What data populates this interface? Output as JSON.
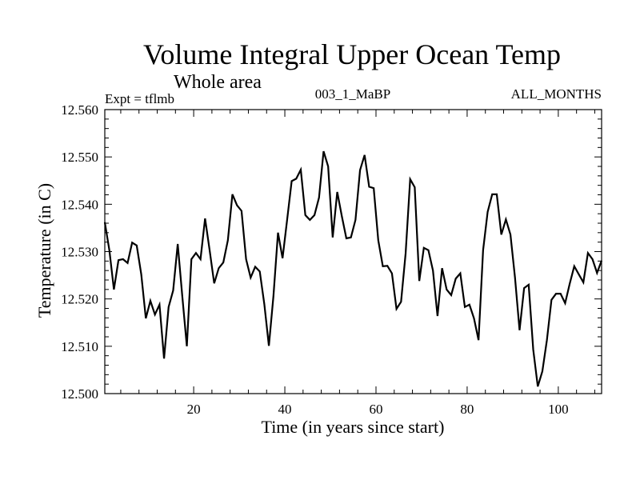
{
  "chart_data": {
    "type": "line",
    "title": "Volume Integral Upper Ocean Temp",
    "subtitle": "Whole area",
    "annotations": {
      "left": "Expt = tflmb",
      "center": "003_1_MaBP",
      "right": "ALL_MONTHS"
    },
    "xlabel": "Time (in years since start)",
    "ylabel": "Temperature (in C)",
    "xlim": [
      0.5,
      109.5
    ],
    "ylim": [
      12.5,
      12.56
    ],
    "xticks": [
      20,
      40,
      60,
      80,
      100
    ],
    "xtick_labels": [
      "20",
      "40",
      "60",
      "80",
      "100"
    ],
    "x_minor_step": 4,
    "yticks": [
      12.5,
      12.51,
      12.52,
      12.53,
      12.54,
      12.55,
      12.56
    ],
    "ytick_labels": [
      "12.500",
      "12.510",
      "12.520",
      "12.530",
      "12.540",
      "12.550",
      "12.560"
    ],
    "y_minor_step": 0.002,
    "grid": false,
    "line_color": "#000000",
    "x_start": 0.5,
    "x_step": 1,
    "series": [
      {
        "name": "Volume Integral Upper Ocean Temp",
        "values": [
          12.5362,
          12.5303,
          12.522,
          12.5282,
          12.5284,
          12.5276,
          12.5319,
          12.5313,
          12.5252,
          12.5159,
          12.5196,
          12.5167,
          12.5188,
          12.5074,
          12.5183,
          12.5218,
          12.5316,
          12.5206,
          12.51,
          12.5284,
          12.5297,
          12.5284,
          12.537,
          12.5303,
          12.5233,
          12.5265,
          12.5277,
          12.5324,
          12.5421,
          12.5398,
          12.5386,
          12.5284,
          12.5245,
          12.5268,
          12.5258,
          12.5189,
          12.5101,
          12.5206,
          12.534,
          12.5286,
          12.5367,
          12.5449,
          12.5454,
          12.5473,
          12.5377,
          12.5367,
          12.5377,
          12.5414,
          12.5512,
          12.548,
          12.533,
          12.5426,
          12.5375,
          12.5328,
          12.533,
          12.5367,
          12.5472,
          12.5504,
          12.5437,
          12.5434,
          12.5324,
          12.5269,
          12.527,
          12.5254,
          12.5179,
          12.5194,
          12.5296,
          12.5453,
          12.5436,
          12.5238,
          12.5308,
          12.5303,
          12.526,
          12.5164,
          12.5265,
          12.522,
          12.5208,
          12.5243,
          12.5254,
          12.5183,
          12.5188,
          12.5159,
          12.5113,
          12.5303,
          12.5384,
          12.5421,
          12.5421,
          12.5336,
          12.5368,
          12.5336,
          12.5245,
          12.5134,
          12.5223,
          12.523,
          12.5093,
          12.5015,
          12.5047,
          12.5113,
          12.5198,
          12.5211,
          12.5211,
          12.5191,
          12.5232,
          12.5269,
          12.5252,
          12.5235,
          12.5297,
          12.5284,
          12.5255,
          12.5281
        ]
      }
    ]
  }
}
